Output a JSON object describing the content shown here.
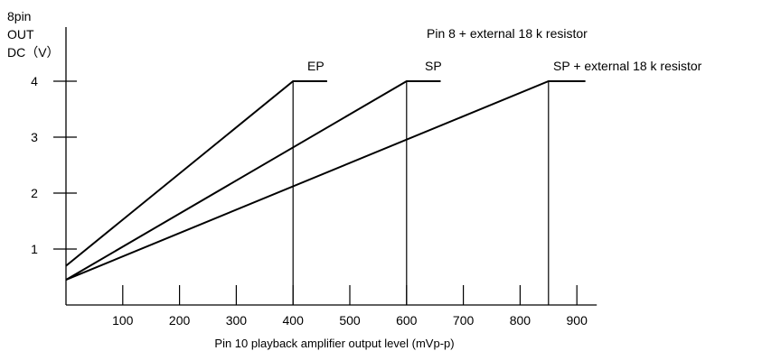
{
  "chart_data": {
    "type": "line",
    "title": "",
    "ylabel_lines": [
      "8pin",
      "OUT",
      "DC（V）"
    ],
    "xlabel": "Pin 10 playback amplifier output level (mVp-p)",
    "x_ticks": [
      100,
      200,
      300,
      400,
      500,
      600,
      700,
      800,
      900
    ],
    "y_ticks": [
      1,
      2,
      3,
      4
    ],
    "xlim": [
      0,
      900
    ],
    "ylim": [
      0,
      4.5
    ],
    "grid": false,
    "legend": "none",
    "series": [
      {
        "name": "EP",
        "points": [
          [
            0,
            0.7
          ],
          [
            400,
            4.0
          ],
          [
            460,
            4.0
          ]
        ],
        "drop_line_x": 400
      },
      {
        "name": "SP",
        "points": [
          [
            0,
            0.45
          ],
          [
            600,
            4.0
          ],
          [
            660,
            4.0
          ]
        ],
        "drop_line_x": 600
      },
      {
        "name": "SP +  external 18 k  resistor",
        "points": [
          [
            0,
            0.45
          ],
          [
            850,
            4.0
          ],
          [
            915,
            4.0
          ]
        ],
        "drop_line_x": 850
      }
    ],
    "annotations": [
      {
        "text": "Pin 8 + external 18 k  resistor"
      }
    ]
  }
}
